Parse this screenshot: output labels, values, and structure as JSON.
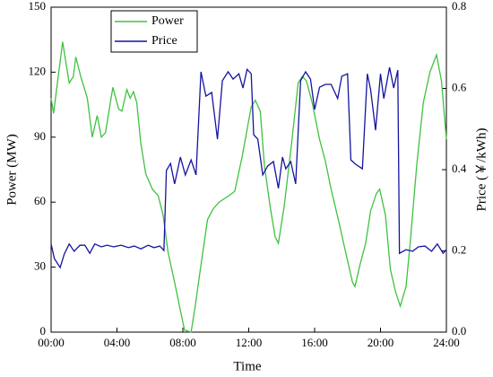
{
  "chart_data": {
    "type": "line",
    "xlabel": "Time",
    "ylabel": "Power (MW)",
    "y2label": "Price (￥/kWh)",
    "xlim": [
      0,
      24
    ],
    "xticks": [
      {
        "value": 0,
        "label": "00:00"
      },
      {
        "value": 4,
        "label": "04:00"
      },
      {
        "value": 8,
        "label": "08:00"
      },
      {
        "value": 12,
        "label": "12:00"
      },
      {
        "value": 16,
        "label": "16:00"
      },
      {
        "value": 20,
        "label": "20:00"
      },
      {
        "value": 24,
        "label": "24:00"
      }
    ],
    "ylim": [
      0,
      150
    ],
    "yticks": [
      0,
      30,
      60,
      90,
      120,
      150
    ],
    "y2lim": [
      0,
      0.8
    ],
    "y2ticks": [
      {
        "value": 0,
        "label": "0.0"
      },
      0.2,
      0.4,
      0.6,
      0.8
    ],
    "legend": "top-left",
    "series": [
      {
        "name": "Power",
        "color": "#3fc23f",
        "x": [
          0,
          0.15,
          0.7,
          1.1,
          1.35,
          1.5,
          1.8,
          2.2,
          2.5,
          2.8,
          3.05,
          3.3,
          3.75,
          4.1,
          4.3,
          4.6,
          4.8,
          5.0,
          5.2,
          5.45,
          5.75,
          6.15,
          6.5,
          6.8,
          7.1,
          7.5,
          7.85,
          8.1,
          8.5,
          8.75,
          9.1,
          9.5,
          9.85,
          10.2,
          10.8,
          11.15,
          11.6,
          12.15,
          12.4,
          12.7,
          12.95,
          13.3,
          13.6,
          13.8,
          14.15,
          14.6,
          15.0,
          15.25,
          15.5,
          15.85,
          16.3,
          16.65,
          17.0,
          17.5,
          17.85,
          18.3,
          18.45,
          18.75,
          19.1,
          19.4,
          19.75,
          19.95,
          20.3,
          20.6,
          20.9,
          21.2,
          21.55,
          21.8,
          22.2,
          22.6,
          23.0,
          23.4,
          23.7,
          24
        ],
        "values": [
          108,
          101,
          134,
          115,
          118,
          127,
          118,
          108,
          90,
          100,
          90,
          92,
          113,
          103,
          102,
          112,
          108,
          111,
          106,
          87,
          73,
          66,
          63,
          54,
          37,
          23,
          10,
          1,
          0,
          12,
          31,
          52,
          57,
          60,
          63,
          65,
          81,
          104,
          107,
          102,
          77,
          58,
          44,
          41,
          58,
          87,
          115,
          118,
          116,
          106,
          89,
          79,
          66,
          50,
          38,
          23,
          21,
          31,
          41,
          56,
          64,
          66,
          54,
          29,
          19,
          12,
          21,
          41,
          77,
          106,
          120,
          128,
          116,
          89
        ]
      },
      {
        "name": "Price",
        "color": "#1414a0",
        "axis": "y2",
        "x": [
          0,
          0.2,
          0.55,
          0.8,
          1.1,
          1.4,
          1.75,
          2.05,
          2.35,
          2.65,
          3.05,
          3.4,
          3.8,
          4.25,
          4.7,
          5.05,
          5.45,
          5.9,
          6.25,
          6.6,
          6.85,
          7.0,
          7.25,
          7.5,
          7.85,
          8.15,
          8.5,
          8.8,
          9.1,
          9.4,
          9.75,
          10.1,
          10.4,
          10.75,
          11.05,
          11.4,
          11.65,
          11.9,
          12.15,
          12.3,
          12.55,
          12.85,
          13.15,
          13.5,
          13.8,
          14.05,
          14.25,
          14.55,
          14.85,
          15.15,
          15.45,
          15.75,
          16.0,
          16.3,
          16.65,
          17.0,
          17.4,
          17.65,
          18.0,
          18.2,
          18.5,
          18.9,
          19.2,
          19.4,
          19.7,
          20.0,
          20.2,
          20.55,
          20.8,
          21.05,
          21.15,
          21.55,
          21.95,
          22.3,
          22.7,
          23.1,
          23.45,
          23.8,
          24
        ],
        "values": [
          0.217,
          0.181,
          0.159,
          0.192,
          0.217,
          0.199,
          0.214,
          0.214,
          0.194,
          0.217,
          0.21,
          0.214,
          0.21,
          0.214,
          0.208,
          0.212,
          0.205,
          0.214,
          0.208,
          0.212,
          0.201,
          0.398,
          0.415,
          0.365,
          0.431,
          0.387,
          0.424,
          0.387,
          0.641,
          0.581,
          0.59,
          0.475,
          0.619,
          0.641,
          0.623,
          0.636,
          0.601,
          0.647,
          0.636,
          0.486,
          0.475,
          0.387,
          0.409,
          0.42,
          0.354,
          0.431,
          0.402,
          0.42,
          0.365,
          0.619,
          0.641,
          0.623,
          0.548,
          0.603,
          0.61,
          0.61,
          0.575,
          0.63,
          0.636,
          0.424,
          0.413,
          0.402,
          0.636,
          0.597,
          0.497,
          0.636,
          0.575,
          0.652,
          0.601,
          0.645,
          0.194,
          0.203,
          0.199,
          0.21,
          0.212,
          0.199,
          0.217,
          0.194,
          0.203
        ]
      }
    ]
  }
}
